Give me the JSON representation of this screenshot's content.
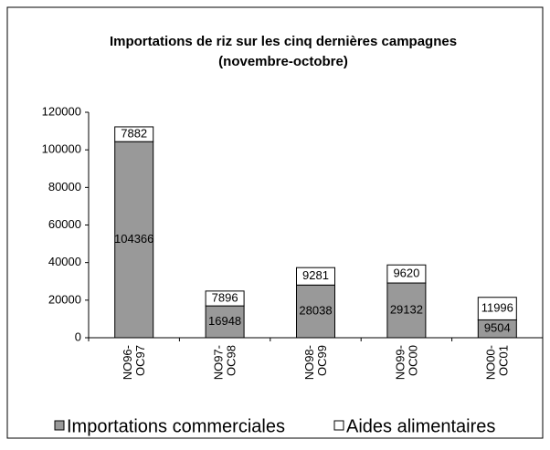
{
  "chart_data": {
    "type": "stacked_bar",
    "title": "Importations de riz sur les cinq dernières campagnes",
    "subtitle": "(novembre-octobre)",
    "categories": [
      [
        "NO96-",
        "OC97"
      ],
      [
        "NO97-",
        "OC98"
      ],
      [
        "NO98-",
        "OC99"
      ],
      [
        "NO99-",
        "OC00"
      ],
      [
        "NO00-",
        "OC01"
      ]
    ],
    "series": [
      {
        "name": "Importations commerciales",
        "color": "#999999",
        "values": [
          104366,
          16948,
          28038,
          29132,
          9504
        ]
      },
      {
        "name": "Aides alimentaires",
        "color": "#ffffff",
        "values": [
          7882,
          7896,
          9281,
          9620,
          11996
        ]
      }
    ],
    "ylim": [
      0,
      120000
    ],
    "yticks": [
      0,
      20000,
      40000,
      60000,
      80000,
      100000,
      120000
    ],
    "legend": "bottom"
  }
}
